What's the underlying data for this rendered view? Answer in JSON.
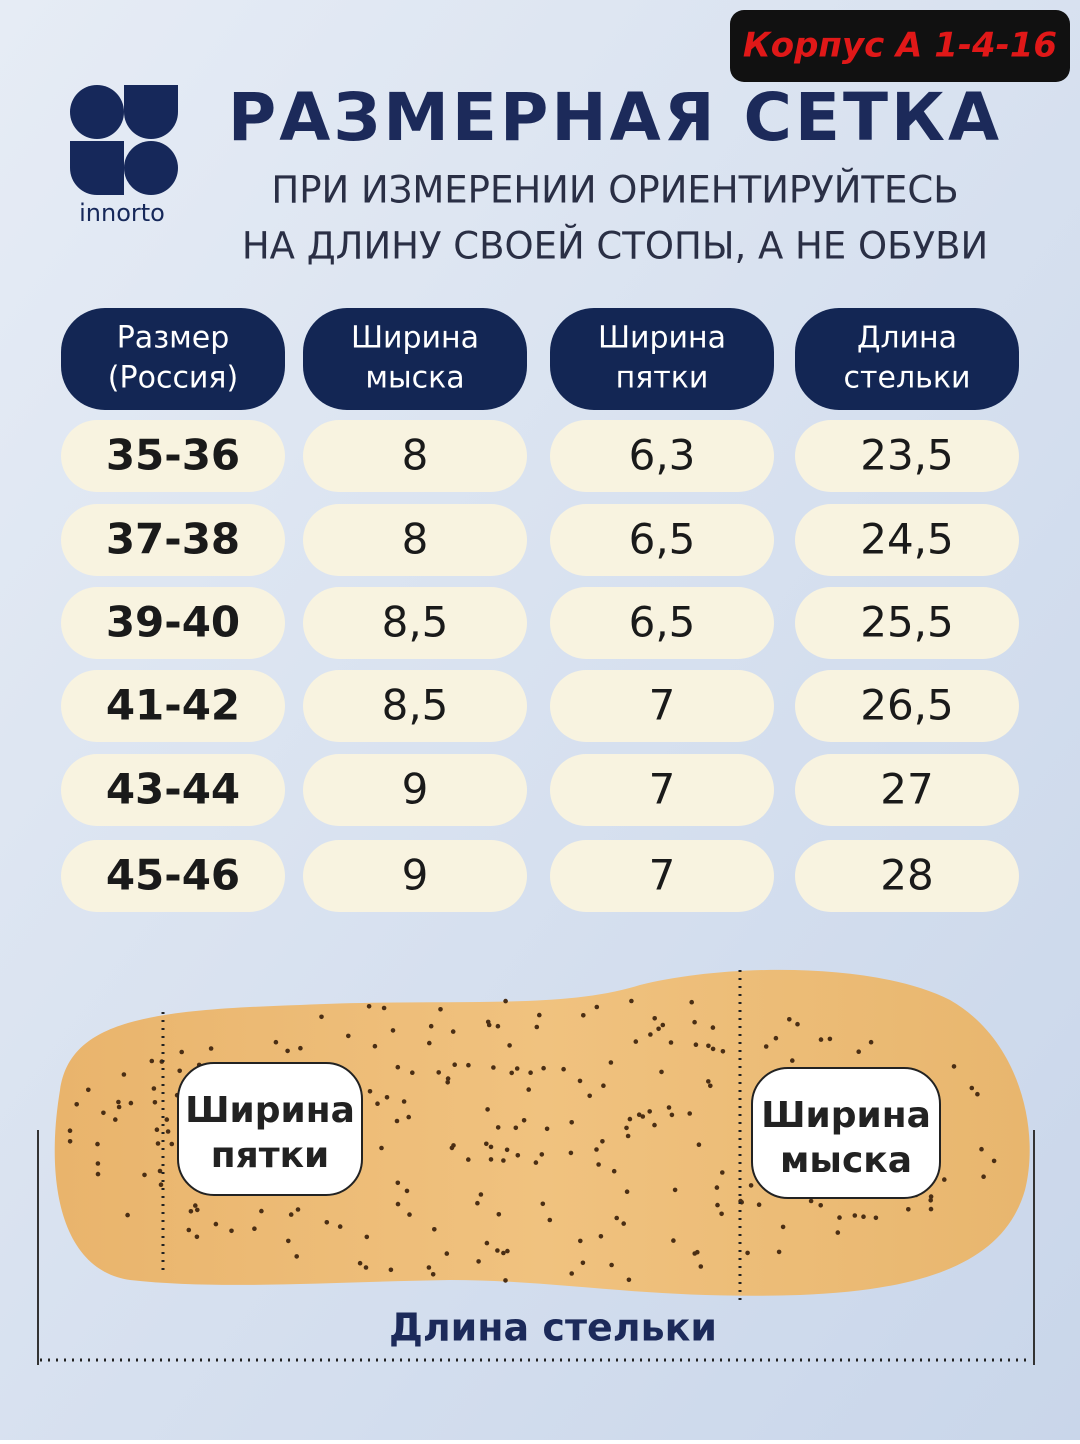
{
  "badge": "Корпус А 1-4-16",
  "logo": {
    "text": "innorto"
  },
  "header": {
    "title": "РАЗМЕРНАЯ СЕТКА",
    "subtitle": [
      "ПРИ ИЗМЕРЕНИИ ОРИЕНТИРУЙТЕСЬ",
      "НА ДЛИНУ СВОЕЙ СТОПЫ, А НЕ ОБУВИ"
    ]
  },
  "table": {
    "columns": [
      [
        "Размер",
        "(Россия)"
      ],
      [
        "Ширина",
        "мыска"
      ],
      [
        "Ширина",
        "пятки"
      ],
      [
        "Длина",
        "стельки"
      ]
    ],
    "rows": [
      [
        "35-36",
        "8",
        "6,3",
        "23,5"
      ],
      [
        "37-38",
        "8",
        "6,5",
        "24,5"
      ],
      [
        "39-40",
        "8,5",
        "6,5",
        "25,5"
      ],
      [
        "41-42",
        "8,5",
        "7",
        "26,5"
      ],
      [
        "43-44",
        "9",
        "7",
        "27"
      ],
      [
        "45-46",
        "9",
        "7",
        "28"
      ]
    ]
  },
  "insole": {
    "heel_label": [
      "Ширина",
      "пятки"
    ],
    "toe_label": [
      "Ширина",
      "мыска"
    ],
    "length_label": "Длина стельки"
  }
}
